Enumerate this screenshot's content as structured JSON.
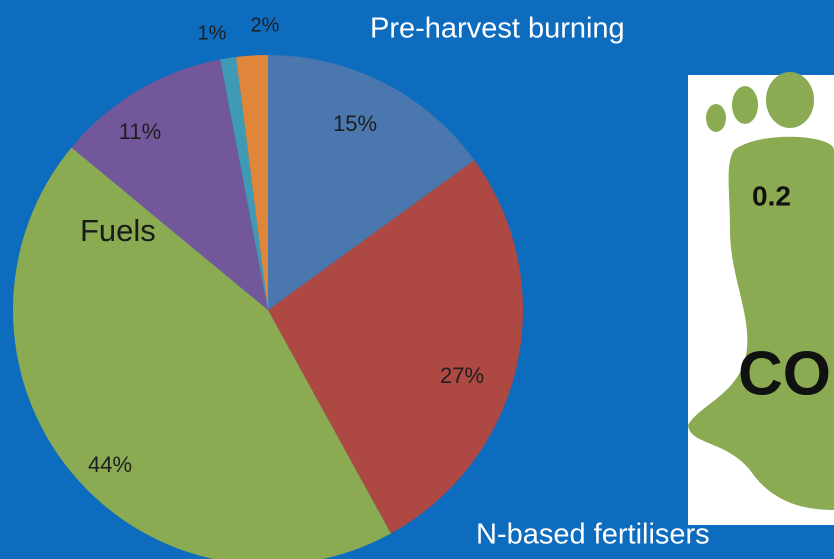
{
  "chart_data": {
    "type": "pie",
    "values": [
      15,
      27,
      44,
      11,
      1,
      2
    ],
    "value_labels": [
      "15%",
      "27%",
      "44%",
      "11%",
      "1%",
      "2%"
    ],
    "colors": [
      "#4a78ae",
      "#ad4843",
      "#8aab51",
      "#72589a",
      "#3f9bb3",
      "#e0863b"
    ],
    "annotations": [
      "Pre-harvest burning",
      "Fuels",
      "N-based fertilisers"
    ]
  },
  "footprint_image": {
    "value_text": "0.2",
    "label": "CO"
  }
}
